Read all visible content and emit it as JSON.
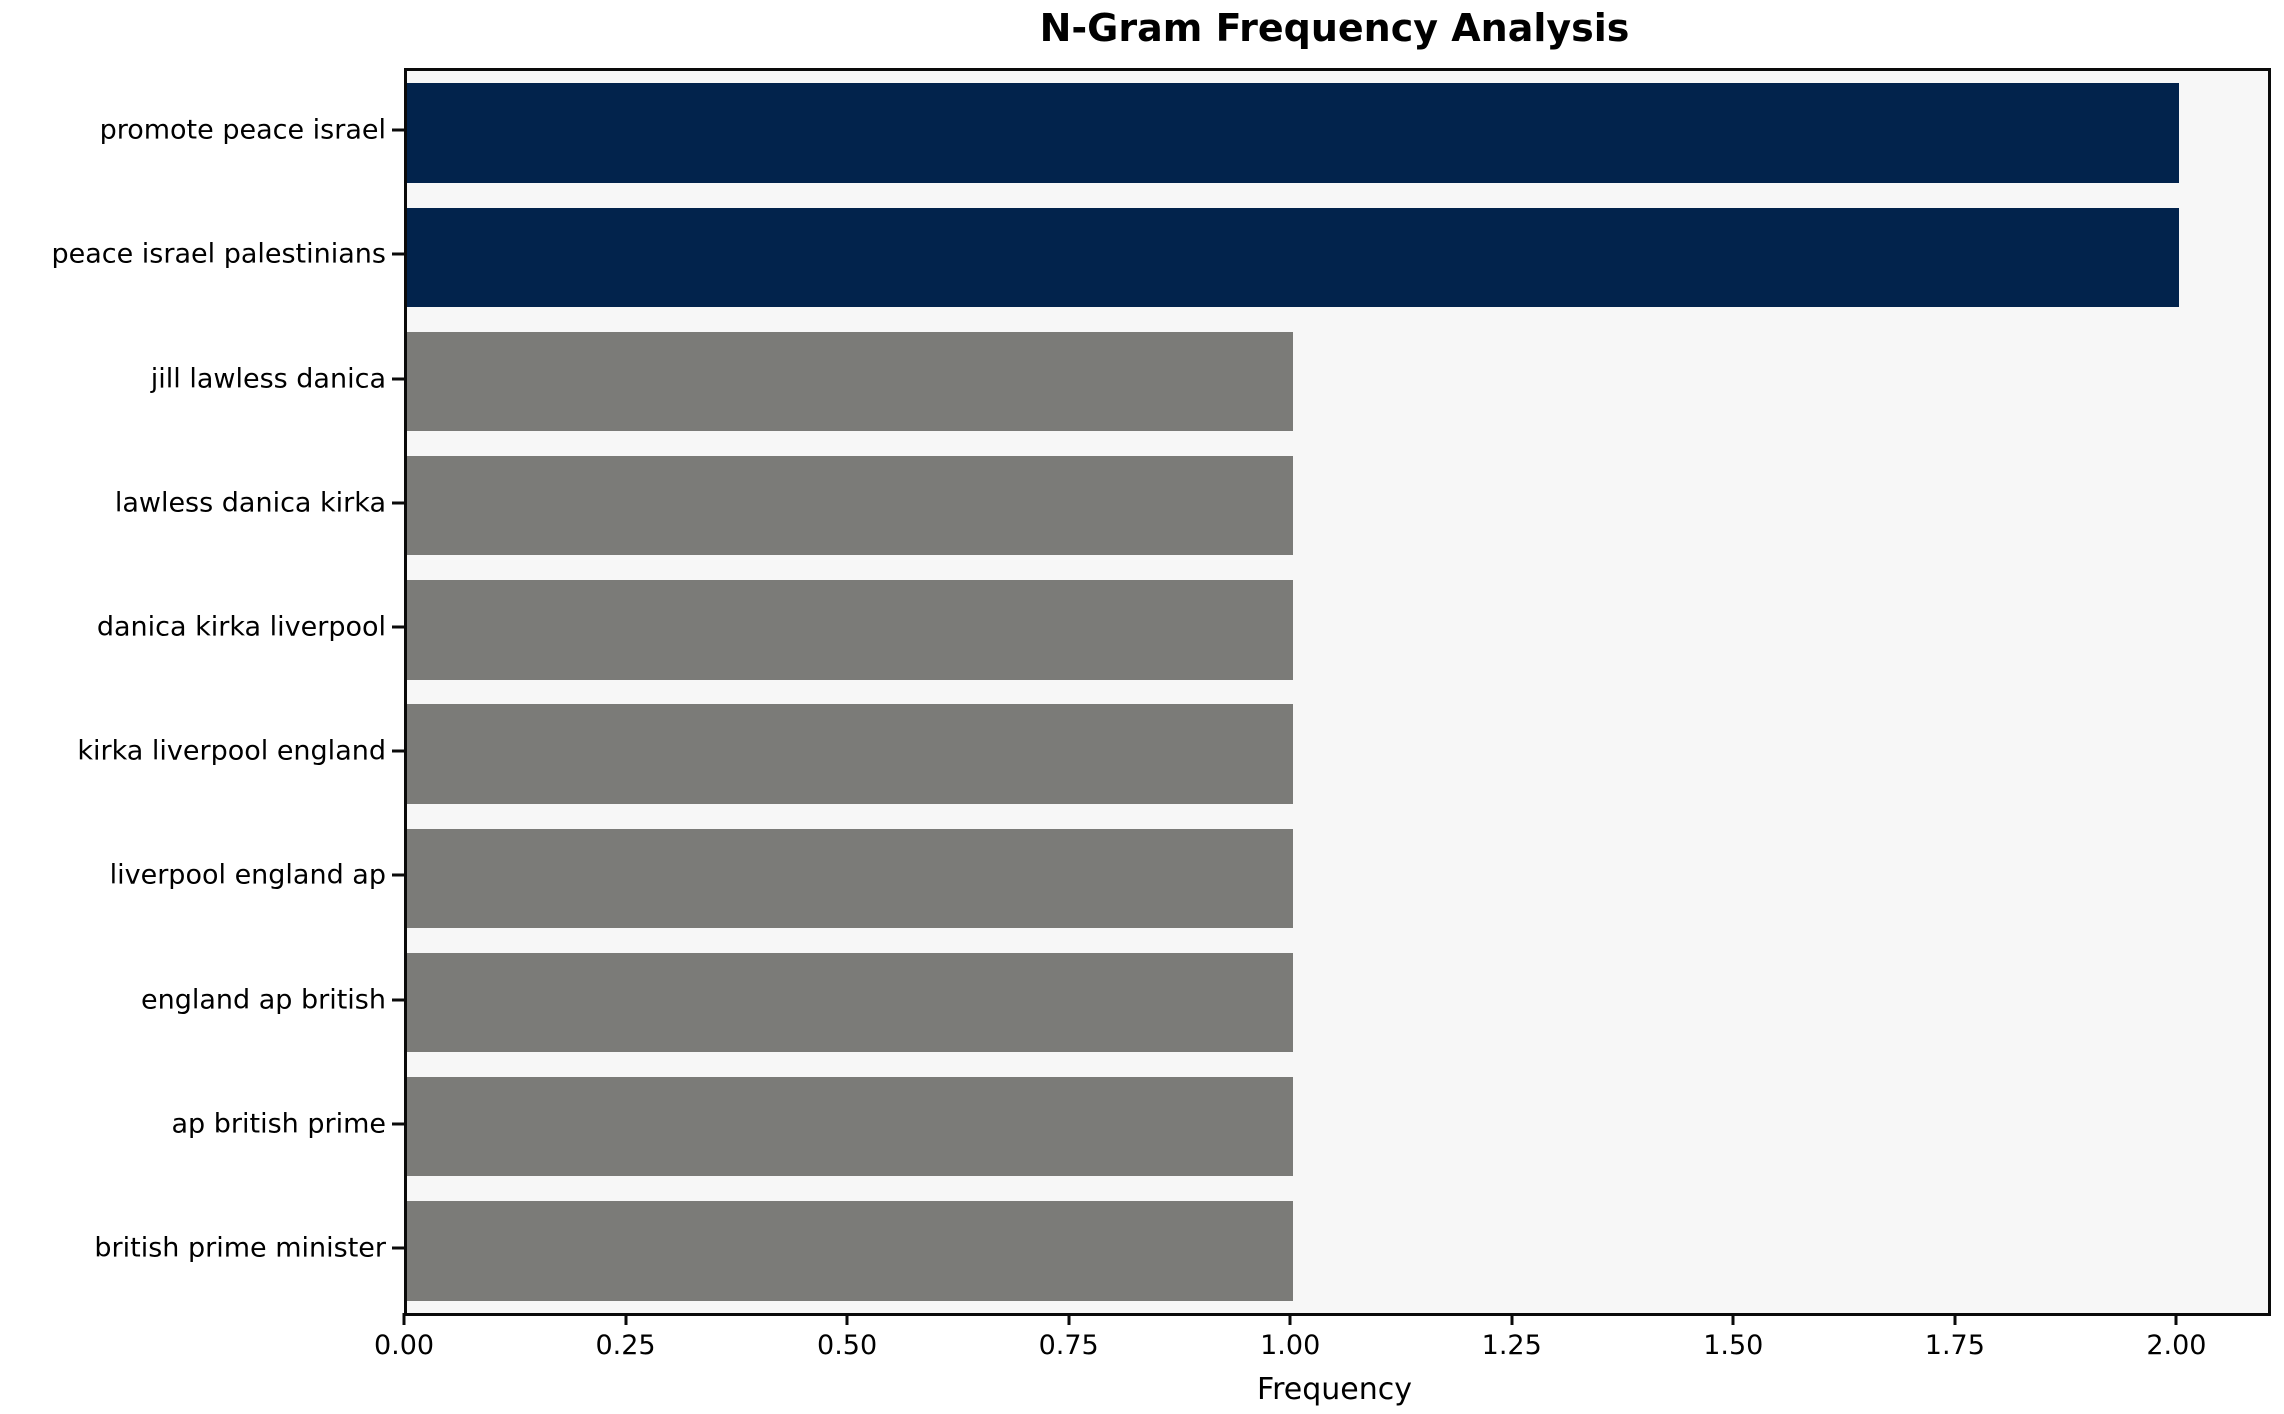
{
  "chart_data": {
    "type": "bar",
    "orientation": "horizontal",
    "title": "N-Gram Frequency Analysis",
    "xlabel": "Frequency",
    "ylabel": "",
    "categories": [
      "promote peace israel",
      "peace israel palestinians",
      "jill lawless danica",
      "lawless danica kirka",
      "danica kirka liverpool",
      "kirka liverpool england",
      "liverpool england ap",
      "england ap british",
      "ap british prime",
      "british prime minister"
    ],
    "values": [
      2,
      2,
      1,
      1,
      1,
      1,
      1,
      1,
      1,
      1
    ],
    "bar_colors": [
      "#02234c",
      "#02234c",
      "#7b7b78",
      "#7b7b78",
      "#7b7b78",
      "#7b7b78",
      "#7b7b78",
      "#7b7b78",
      "#7b7b78",
      "#7b7b78"
    ],
    "x_ticks": [
      "0.00",
      "0.25",
      "0.50",
      "0.75",
      "1.00",
      "1.25",
      "1.50",
      "1.75",
      "2.00"
    ],
    "x_tick_values": [
      0,
      0.25,
      0.5,
      0.75,
      1.0,
      1.25,
      1.5,
      1.75,
      2.0
    ],
    "xlim": [
      0,
      2.1
    ],
    "grid": false,
    "legend": null,
    "colors": {
      "highlight_bar": "#02234c",
      "default_bar": "#7b7b78",
      "plot_background": "#f7f7f7",
      "figure_background": "#ffffff",
      "spine": "#0a0a0a",
      "text": "#000000"
    }
  }
}
